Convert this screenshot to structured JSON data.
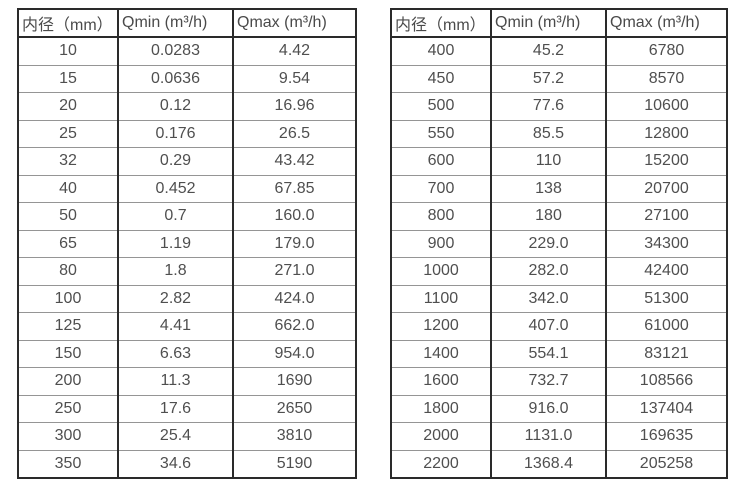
{
  "colors": {
    "background": "#ffffff",
    "text": "#4f4f4f",
    "frame_border": "#2a2a2a",
    "row_divider": "#959595"
  },
  "tables": [
    {
      "name": "flow-range-small-diameters",
      "headers": [
        "内径（mm）",
        "Qmin (m³/h)",
        "Qmax (m³/h)"
      ],
      "rows": [
        [
          "10",
          "0.0283",
          "4.42"
        ],
        [
          "15",
          "0.0636",
          "9.54"
        ],
        [
          "20",
          "0.12",
          "16.96"
        ],
        [
          "25",
          "0.176",
          "26.5"
        ],
        [
          "32",
          "0.29",
          "43.42"
        ],
        [
          "40",
          "0.452",
          "67.85"
        ],
        [
          "50",
          "0.7",
          "160.0"
        ],
        [
          "65",
          "1.19",
          "179.0"
        ],
        [
          "80",
          "1.8",
          "271.0"
        ],
        [
          "100",
          "2.82",
          "424.0"
        ],
        [
          "125",
          "4.41",
          "662.0"
        ],
        [
          "150",
          "6.63",
          "954.0"
        ],
        [
          "200",
          "11.3",
          "1690"
        ],
        [
          "250",
          "17.6",
          "2650"
        ],
        [
          "300",
          "25.4",
          "3810"
        ],
        [
          "350",
          "34.6",
          "5190"
        ]
      ]
    },
    {
      "name": "flow-range-large-diameters",
      "headers": [
        "内径（mm）",
        "Qmin (m³/h)",
        "Qmax (m³/h)"
      ],
      "rows": [
        [
          "400",
          "45.2",
          "6780"
        ],
        [
          "450",
          "57.2",
          "8570"
        ],
        [
          "500",
          "77.6",
          "10600"
        ],
        [
          "550",
          "85.5",
          "12800"
        ],
        [
          "600",
          "110",
          "15200"
        ],
        [
          "700",
          "138",
          "20700"
        ],
        [
          "800",
          "180",
          "27100"
        ],
        [
          "900",
          "229.0",
          "34300"
        ],
        [
          "1000",
          "282.0",
          "42400"
        ],
        [
          "1100",
          "342.0",
          "51300"
        ],
        [
          "1200",
          "407.0",
          "61000"
        ],
        [
          "1400",
          "554.1",
          "83121"
        ],
        [
          "1600",
          "732.7",
          "108566"
        ],
        [
          "1800",
          "916.0",
          "137404"
        ],
        [
          "2000",
          "1131.0",
          "169635"
        ],
        [
          "2200",
          "1368.4",
          "205258"
        ]
      ]
    }
  ]
}
